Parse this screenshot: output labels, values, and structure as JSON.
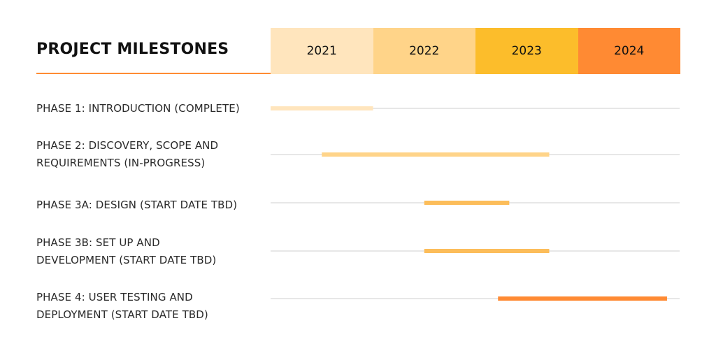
{
  "chart_data": {
    "type": "gantt",
    "title": "PROJECT MILESTONES",
    "years": [
      {
        "label": "2021",
        "color": "#ffe5bd"
      },
      {
        "label": "2022",
        "color": "#ffd489"
      },
      {
        "label": "2023",
        "color": "#fcbd2b"
      },
      {
        "label": "2024",
        "color": "#ff8a33"
      }
    ],
    "x_range": [
      2021.0,
      2025.0
    ],
    "accent_color": "#ff8c33",
    "track_color": "#cfcfcf",
    "phases": [
      {
        "lines": [
          "PHASE 1: INTRODUCTION (COMPLETE)"
        ],
        "start": 2021.0,
        "end": 2022.0,
        "color": "#ffe5bd"
      },
      {
        "lines": [
          "PHASE 2: DISCOVERY,  SCOPE AND",
          "REQUIREMENTS (IN-PROGRESS)"
        ],
        "start": 2021.5,
        "end": 2023.72,
        "color": "#ffd489"
      },
      {
        "lines": [
          "PHASE 3A: DESIGN (START DATE TBD)"
        ],
        "start": 2022.5,
        "end": 2023.33,
        "color": "#fcbd5a"
      },
      {
        "lines": [
          "PHASE 3B: SET UP AND",
          "DEVELOPMENT (START DATE TBD)"
        ],
        "start": 2022.5,
        "end": 2023.72,
        "color": "#fcbd5a"
      },
      {
        "lines": [
          "PHASE 4: USER TESTING AND",
          "DEPLOYMENT (START DATE TBD)"
        ],
        "start": 2023.22,
        "end": 2024.87,
        "color": "#ff8a33"
      }
    ]
  }
}
